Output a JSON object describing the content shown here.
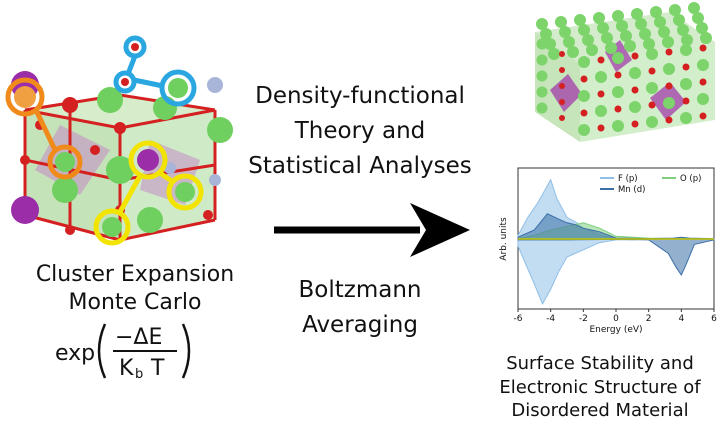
{
  "left": {
    "caption_line1": "Cluster Expansion",
    "caption_line2": "Monte Carlo",
    "formula": {
      "fn": "exp",
      "numerator": "−ΔE",
      "denominator_k": "K",
      "denominator_sub": "b",
      "denominator_t": "T"
    }
  },
  "middle": {
    "top_line1": "Density-functional",
    "top_line2": "Theory and",
    "top_line3": "Statistical Analyses",
    "bottom_line1": "Boltzmann",
    "bottom_line2": "Averaging"
  },
  "right": {
    "caption_line1": "Surface Stability and",
    "caption_line2": "Electronic Structure of",
    "caption_line3": "Disordered Material"
  },
  "chart_data": {
    "type": "area",
    "xlabel": "Energy (eV)",
    "ylabel": "Arb. units",
    "xlim": [
      -6,
      6
    ],
    "x_ticks": [
      "-6",
      "-4",
      "-2",
      "0",
      "2",
      "4",
      "6"
    ],
    "legend": [
      "F (p)",
      "O (p)",
      "Mn (d)"
    ],
    "colors": {
      "F (p)": "#8fbfe8",
      "O (p)": "#7fcf7f",
      "Mn (d)": "#3b6fa8"
    },
    "series": [
      {
        "name": "F (p)",
        "x": [
          -6,
          -5.4,
          -4.8,
          -4.3,
          -4,
          -3.6,
          -3,
          -2.4,
          -2,
          -1.6,
          -1,
          0,
          2,
          4,
          6
        ],
        "values": [
          0.2,
          1.2,
          2.0,
          2.8,
          3.3,
          2.2,
          1.2,
          0.9,
          0.6,
          0.5,
          0.2,
          0.05,
          0.02,
          0.02,
          0.02
        ]
      },
      {
        "name": "O (p)",
        "x": [
          -6,
          -5,
          -4,
          -3,
          -2,
          -1,
          0,
          2,
          4,
          6
        ],
        "values": [
          0.02,
          0.2,
          0.5,
          0.7,
          0.9,
          0.6,
          0.15,
          0.05,
          0.02,
          0.02
        ]
      },
      {
        "name": "Mn (d)",
        "x": [
          -6,
          -5,
          -4.2,
          -3.5,
          -3,
          -2.5,
          -2,
          -1,
          0,
          2,
          3.5,
          4,
          4.5,
          6
        ],
        "values": [
          0.1,
          0.5,
          1.4,
          1.1,
          0.9,
          0.8,
          0.6,
          0.4,
          0.05,
          0.02,
          0.05,
          0.1,
          0.05,
          0.02
        ]
      }
    ],
    "negative_series": [
      {
        "name": "F (p)",
        "x": [
          -6,
          -5,
          -4.5,
          -4,
          -3.5,
          -3,
          -2,
          -1,
          0,
          2,
          6
        ],
        "values": [
          0.4,
          2.5,
          3.6,
          2.8,
          1.8,
          1.0,
          0.6,
          0.2,
          0.05,
          0.02,
          0.02
        ]
      },
      {
        "name": "Mn (d)",
        "x": [
          -6,
          -3,
          0,
          2,
          3.2,
          3.7,
          4,
          4.3,
          4.8,
          6
        ],
        "values": [
          0.05,
          0.05,
          0.02,
          0.05,
          0.8,
          1.6,
          2.0,
          1.4,
          0.3,
          0.05
        ]
      }
    ]
  }
}
